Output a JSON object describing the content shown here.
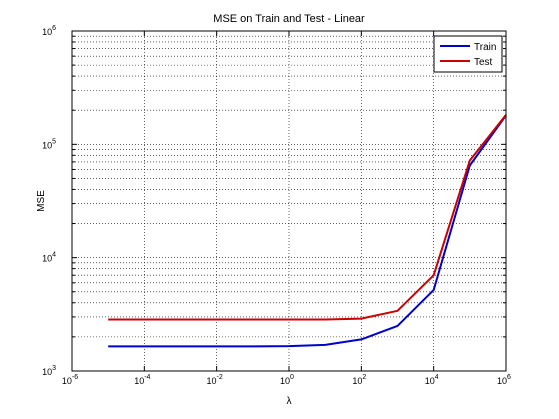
{
  "chart_data": {
    "type": "line",
    "title": "MSE on Train and Test - Linear",
    "xlabel": "λ",
    "ylabel": "MSE",
    "xscale": "log",
    "yscale": "log",
    "xlim": [
      1e-06,
      1000000.0
    ],
    "ylim": [
      1000,
      1000000
    ],
    "grid": true,
    "legend_position": "top-right",
    "x_ticks": [
      {
        "base": "10",
        "exp": "-6"
      },
      {
        "base": "10",
        "exp": "-4"
      },
      {
        "base": "10",
        "exp": "-2"
      },
      {
        "base": "10",
        "exp": "0"
      },
      {
        "base": "10",
        "exp": "2"
      },
      {
        "base": "10",
        "exp": "4"
      },
      {
        "base": "10",
        "exp": "6"
      }
    ],
    "y_ticks": [
      {
        "base": "10",
        "exp": "3"
      },
      {
        "base": "10",
        "exp": "4"
      },
      {
        "base": "10",
        "exp": "5"
      },
      {
        "base": "10",
        "exp": "6"
      }
    ],
    "series": [
      {
        "name": "Train",
        "color": "#0000cc",
        "x": [
          1e-05,
          0.0001,
          0.001,
          0.01,
          0.1,
          1,
          10,
          100,
          1000,
          10000,
          100000,
          1000000
        ],
        "y": [
          1650,
          1650,
          1650,
          1650,
          1650,
          1660,
          1700,
          1900,
          2500,
          5200,
          65000,
          180000
        ]
      },
      {
        "name": "Test",
        "color": "#cc0000",
        "x": [
          1e-05,
          0.0001,
          0.001,
          0.01,
          0.1,
          1,
          10,
          100,
          1000,
          10000,
          100000,
          1000000
        ],
        "y": [
          2850,
          2850,
          2850,
          2850,
          2850,
          2850,
          2850,
          2900,
          3400,
          7000,
          72000,
          182000
        ]
      }
    ]
  }
}
